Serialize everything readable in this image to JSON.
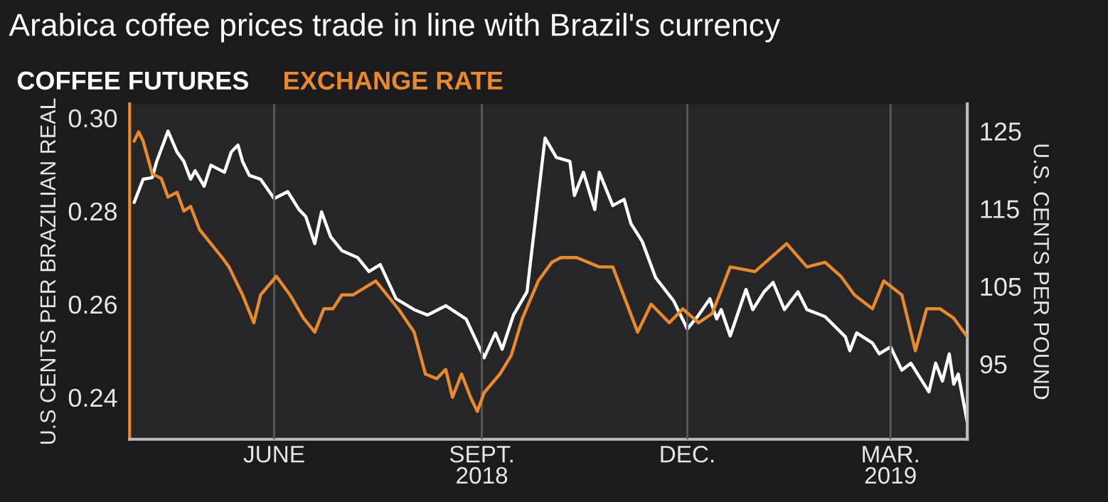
{
  "chart_data": {
    "type": "line",
    "title": "Arabica coffee prices trade in line with Brazil's currency",
    "ylabel": "U.S CENTS PER BRAZILIAN REAL",
    "y2label": "U.S. CENTS PER POUND",
    "xlim": [
      "2018-03-29",
      "2019-04-04"
    ],
    "xticks": [
      {
        "value": "2018-06-01",
        "label": "JUNE"
      },
      {
        "value": "2018-09-01",
        "label": "SEPT.\n2018"
      },
      {
        "value": "2018-12-01",
        "label": "DEC."
      },
      {
        "value": "2019-03-01",
        "label": "MAR.\n2019"
      }
    ],
    "ylim": [
      0.231,
      0.303
    ],
    "yticks": [
      {
        "value": 0.24,
        "label": "0.24"
      },
      {
        "value": 0.26,
        "label": "0.26"
      },
      {
        "value": 0.28,
        "label": "0.28"
      },
      {
        "value": 0.3,
        "label": "0.30"
      }
    ],
    "y2lim": [
      85.3,
      128.5
    ],
    "y2ticks": [
      95,
      105,
      115,
      125
    ],
    "grid": "x",
    "legend": "top left",
    "series": [
      {
        "name": "COFFEE FUTURES",
        "color": "#ffffff",
        "axis": "y2",
        "x": [
          "2018-03-31",
          "2018-04-04",
          "2018-04-08",
          "2018-04-10",
          "2018-04-15",
          "2018-04-19",
          "2018-04-22",
          "2018-04-25",
          "2018-04-27",
          "2018-05-01",
          "2018-05-04",
          "2018-05-10",
          "2018-05-13",
          "2018-05-16",
          "2018-05-18",
          "2018-05-21",
          "2018-05-26",
          "2018-06-01",
          "2018-06-07",
          "2018-06-12",
          "2018-06-15",
          "2018-06-19",
          "2018-06-22",
          "2018-06-26",
          "2018-07-01",
          "2018-07-08",
          "2018-07-13",
          "2018-07-18",
          "2018-07-25",
          "2018-08-02",
          "2018-08-08",
          "2018-08-16",
          "2018-08-25",
          "2018-09-02",
          "2018-09-07",
          "2018-09-10",
          "2018-09-15",
          "2018-09-21",
          "2018-09-26",
          "2018-09-29",
          "2018-10-04",
          "2018-10-10",
          "2018-10-12",
          "2018-10-16",
          "2018-10-21",
          "2018-10-23",
          "2018-10-29",
          "2018-11-03",
          "2018-11-06",
          "2018-11-11",
          "2018-11-17",
          "2018-11-25",
          "2018-12-01",
          "2018-12-06",
          "2018-12-11",
          "2018-12-14",
          "2018-12-16",
          "2018-12-20",
          "2018-12-27",
          "2018-12-30",
          "2019-01-04",
          "2019-01-08",
          "2019-01-13",
          "2019-01-19",
          "2019-01-23",
          "2019-01-31",
          "2019-02-09",
          "2019-02-11",
          "2019-02-14",
          "2019-02-21",
          "2019-02-24",
          "2019-03-01",
          "2019-03-06",
          "2019-03-10",
          "2019-03-18",
          "2019-03-21",
          "2019-03-24",
          "2019-03-27",
          "2019-03-29",
          "2019-03-31",
          "2019-04-04"
        ],
        "values": [
          115.8,
          118.8,
          119.0,
          121.1,
          125.0,
          122.3,
          121.1,
          118.8,
          119.9,
          117.9,
          120.6,
          119.7,
          122.3,
          123.2,
          121.1,
          119.3,
          118.8,
          116.3,
          117.2,
          114.9,
          114.0,
          110.5,
          114.6,
          111.4,
          109.6,
          108.7,
          106.9,
          107.8,
          103.4,
          102.0,
          101.3,
          102.5,
          100.8,
          95.8,
          99.0,
          96.9,
          101.3,
          104.3,
          116.7,
          124.1,
          121.6,
          121.1,
          116.7,
          119.7,
          114.9,
          119.7,
          115.4,
          116.2,
          113.1,
          110.8,
          106.1,
          103.1,
          99.5,
          101.3,
          103.4,
          100.8,
          102.0,
          98.6,
          104.6,
          102.0,
          104.3,
          105.5,
          102.0,
          104.3,
          102.0,
          101.1,
          98.5,
          96.7,
          99.0,
          97.7,
          96.3,
          97.2,
          94.2,
          95.1,
          91.4,
          95.1,
          92.8,
          96.3,
          92.4,
          93.7,
          87.5
        ]
      },
      {
        "name": "EXCHANGE RATE",
        "color": "#e8892b",
        "x": [
          "2018-03-31",
          "2018-04-02",
          "2018-04-04",
          "2018-04-08",
          "2018-04-12",
          "2018-04-15",
          "2018-04-19",
          "2018-04-22",
          "2018-04-25",
          "2018-04-29",
          "2018-05-04",
          "2018-05-09",
          "2018-05-12",
          "2018-05-18",
          "2018-05-23",
          "2018-05-26",
          "2018-06-02",
          "2018-06-08",
          "2018-06-14",
          "2018-06-19",
          "2018-06-23",
          "2018-06-27",
          "2018-07-01",
          "2018-07-06",
          "2018-07-16",
          "2018-07-26",
          "2018-08-02",
          "2018-08-07",
          "2018-08-12",
          "2018-08-16",
          "2018-08-19",
          "2018-08-23",
          "2018-08-27",
          "2018-08-30",
          "2018-09-02",
          "2018-09-09",
          "2018-09-14",
          "2018-09-19",
          "2018-09-26",
          "2018-10-02",
          "2018-10-06",
          "2018-10-13",
          "2018-10-23",
          "2018-10-29",
          "2018-11-09",
          "2018-11-15",
          "2018-11-23",
          "2018-11-29",
          "2018-12-06",
          "2018-12-12",
          "2018-12-20",
          "2018-12-31",
          "2019-01-14",
          "2019-01-23",
          "2019-01-31",
          "2019-02-07",
          "2019-02-13",
          "2019-02-21",
          "2019-02-26",
          "2019-03-06",
          "2019-03-12",
          "2019-03-17",
          "2019-03-23",
          "2019-03-29",
          "2019-04-04"
        ],
        "values": [
          0.295,
          0.297,
          0.295,
          0.288,
          0.287,
          0.283,
          0.284,
          0.28,
          0.281,
          0.276,
          0.273,
          0.27,
          0.268,
          0.262,
          0.256,
          0.262,
          0.266,
          0.262,
          0.257,
          0.254,
          0.259,
          0.259,
          0.262,
          0.262,
          0.265,
          0.259,
          0.254,
          0.245,
          0.244,
          0.246,
          0.24,
          0.245,
          0.24,
          0.237,
          0.241,
          0.245,
          0.249,
          0.257,
          0.265,
          0.269,
          0.27,
          0.27,
          0.268,
          0.268,
          0.254,
          0.26,
          0.256,
          0.259,
          0.256,
          0.258,
          0.268,
          0.267,
          0.273,
          0.268,
          0.269,
          0.266,
          0.262,
          0.259,
          0.265,
          0.262,
          0.25,
          0.259,
          0.259,
          0.257,
          0.253
        ]
      }
    ]
  }
}
